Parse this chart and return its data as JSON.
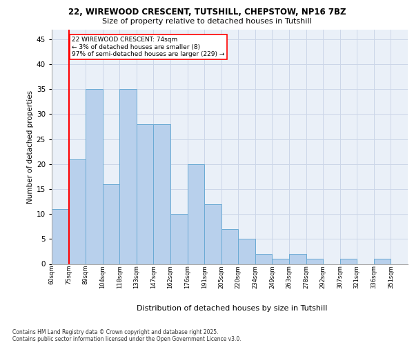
{
  "title_line1": "22, WIREWOOD CRESCENT, TUTSHILL, CHEPSTOW, NP16 7BZ",
  "title_line2": "Size of property relative to detached houses in Tutshill",
  "xlabel": "Distribution of detached houses by size in Tutshill",
  "ylabel": "Number of detached properties",
  "bin_labels": [
    "60sqm",
    "75sqm",
    "89sqm",
    "104sqm",
    "118sqm",
    "133sqm",
    "147sqm",
    "162sqm",
    "176sqm",
    "191sqm",
    "205sqm",
    "220sqm",
    "234sqm",
    "249sqm",
    "263sqm",
    "278sqm",
    "292sqm",
    "307sqm",
    "321sqm",
    "336sqm",
    "351sqm"
  ],
  "bar_values": [
    11,
    21,
    35,
    16,
    35,
    28,
    28,
    10,
    20,
    12,
    7,
    5,
    2,
    1,
    2,
    1,
    0,
    1,
    0,
    1,
    0
  ],
  "bar_color": "#b8d0ec",
  "bar_edge_color": "#6aaad4",
  "property_line_x": 1,
  "annotation_text": "22 WIREWOOD CRESCENT: 74sqm\n← 3% of detached houses are smaller (8)\n97% of semi-detached houses are larger (229) →",
  "annotation_box_color": "white",
  "annotation_box_edge_color": "red",
  "marker_line_color": "red",
  "ylim": [
    0,
    47
  ],
  "yticks": [
    0,
    5,
    10,
    15,
    20,
    25,
    30,
    35,
    40,
    45
  ],
  "footer_text": "Contains HM Land Registry data © Crown copyright and database right 2025.\nContains public sector information licensed under the Open Government Licence v3.0.",
  "bg_color": "#eaf0f8",
  "grid_color": "#ccd6e8"
}
